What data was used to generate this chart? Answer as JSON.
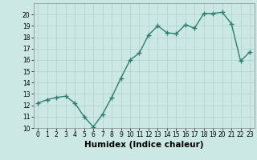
{
  "xlabel": "Humidex (Indice chaleur)",
  "ylabel": "",
  "x": [
    0,
    1,
    2,
    3,
    4,
    5,
    6,
    7,
    8,
    9,
    10,
    11,
    12,
    13,
    14,
    15,
    16,
    17,
    18,
    19,
    20,
    21,
    22,
    23
  ],
  "y": [
    12.2,
    12.5,
    12.7,
    12.8,
    12.2,
    11.0,
    10.1,
    11.2,
    12.7,
    14.4,
    16.0,
    16.6,
    18.2,
    19.0,
    18.4,
    18.3,
    19.1,
    18.8,
    20.1,
    20.1,
    20.2,
    19.2,
    15.9,
    16.7
  ],
  "ylim": [
    10,
    21
  ],
  "xlim": [
    -0.5,
    23.5
  ],
  "yticks": [
    10,
    11,
    12,
    13,
    14,
    15,
    16,
    17,
    18,
    19,
    20
  ],
  "xticks": [
    0,
    1,
    2,
    3,
    4,
    5,
    6,
    7,
    8,
    9,
    10,
    11,
    12,
    13,
    14,
    15,
    16,
    17,
    18,
    19,
    20,
    21,
    22,
    23
  ],
  "line_color": "#2e7d6e",
  "marker": "+",
  "bg_color": "#cce8e4",
  "grid_color": "#b0d0cc",
  "tick_fontsize": 5.5,
  "xlabel_fontsize": 7.5,
  "linewidth": 1.0,
  "markersize": 4
}
